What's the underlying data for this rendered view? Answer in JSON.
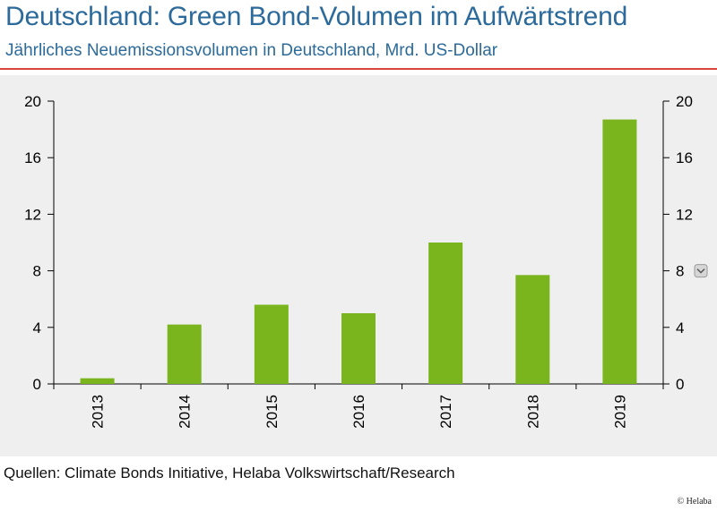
{
  "header": {
    "title": "Deutschland: Green Bond-Volumen im Aufwärtstrend",
    "subtitle": "Jährliches Neuemissionsvolumen in Deutschland, Mrd. US-Dollar"
  },
  "footer": {
    "source": "Quellen: Climate Bonds Initiative, Helaba Volkswirtschaft/Research",
    "copyright": "© Helaba"
  },
  "colors": {
    "title": "#2b6a9a",
    "rule": "#d9453b",
    "plot_bg": "#efefef",
    "bar": "#7ab51d"
  },
  "chart_data": {
    "type": "bar",
    "title": "Deutschland: Green Bond-Volumen im Aufwärtstrend",
    "subtitle": "Jährliches Neuemissionsvolumen in Deutschland, Mrd. US-Dollar",
    "xlabel": "",
    "ylabel": "",
    "categories": [
      "2013",
      "2014",
      "2015",
      "2016",
      "2017",
      "2018",
      "2019"
    ],
    "values": [
      0.4,
      4.2,
      5.6,
      5.0,
      10.0,
      7.7,
      18.7
    ],
    "ylim": [
      0,
      20
    ],
    "yticks": [
      "0",
      "4",
      "8",
      "12",
      "16",
      "20"
    ],
    "secondary_axis": true,
    "grid": false,
    "legend": "none"
  }
}
